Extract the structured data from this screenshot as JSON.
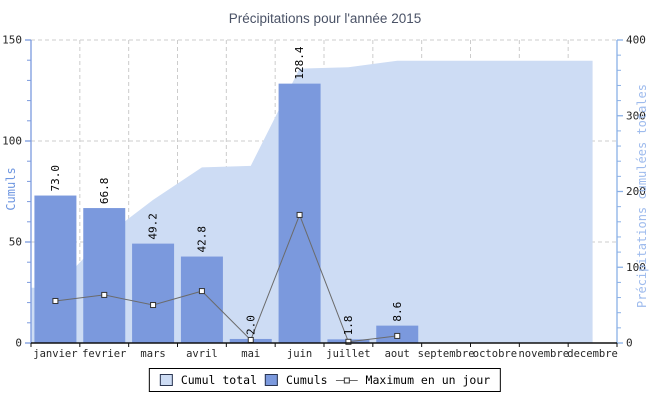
{
  "title": "Précipitations pour l'année 2015",
  "colors": {
    "bar": "#7b99dd",
    "area": "#cddcf4",
    "line": "#6b6b6b",
    "marker_fill": "#ffffff",
    "marker_border": "#333333",
    "grid": "#cccccc",
    "left_axis": "#7b9ade",
    "right_axis": "#8ab0e6",
    "left_axis_title": "#6e96e0",
    "right_axis_title": "#9ebbed",
    "x_axis": "#111111",
    "tick_label": "#262626",
    "value_label": "#000000",
    "title_color": "#4a5266"
  },
  "chart_data": {
    "type": "combo (area + bar + line)",
    "title": "Précipitations pour l'année 2015",
    "categories": [
      "janvier",
      "fevrier",
      "mars",
      "avril",
      "mai",
      "juin",
      "juillet",
      "aout",
      "septembre",
      "octobre",
      "novembre",
      "decembre"
    ],
    "series": [
      {
        "name": "Cumul total",
        "type": "area",
        "axis": "right",
        "values": [
          73.0,
          139.8,
          189.0,
          231.8,
          233.8,
          362.2,
          364.0,
          372.6,
          372.6,
          372.6,
          372.6,
          372.6
        ]
      },
      {
        "name": "Cumuls",
        "type": "bar",
        "axis": "left",
        "values": [
          73.0,
          66.8,
          49.2,
          42.8,
          2.0,
          128.4,
          1.8,
          8.6,
          null,
          null,
          null,
          null
        ],
        "labels": [
          "73.0",
          "66.8",
          "49.2",
          "42.8",
          "2.0",
          "128.4",
          "1.8",
          "8.6"
        ]
      },
      {
        "name": "Maximum en un jour",
        "type": "line",
        "axis": "left",
        "values": [
          20.8,
          23.8,
          18.8,
          25.7,
          1.5,
          63.4,
          0.6,
          3.5,
          null,
          null,
          null,
          null
        ]
      }
    ],
    "left_axis": {
      "label": "Cumuls",
      "ticks": [
        0,
        50,
        100,
        150
      ],
      "max": 150,
      "minor_step": 10
    },
    "right_axis": {
      "label": "Précipitations cumulées totales",
      "ticks": [
        0,
        100,
        200,
        300,
        400
      ],
      "max": 400,
      "minor_step": 20
    },
    "legend": {
      "position": "bottom",
      "items": [
        {
          "label": "Cumul total",
          "swatch": "area"
        },
        {
          "label": "Cumuls",
          "swatch": "bar"
        },
        {
          "label": "Maximum en un jour",
          "swatch": "marker"
        }
      ]
    }
  }
}
